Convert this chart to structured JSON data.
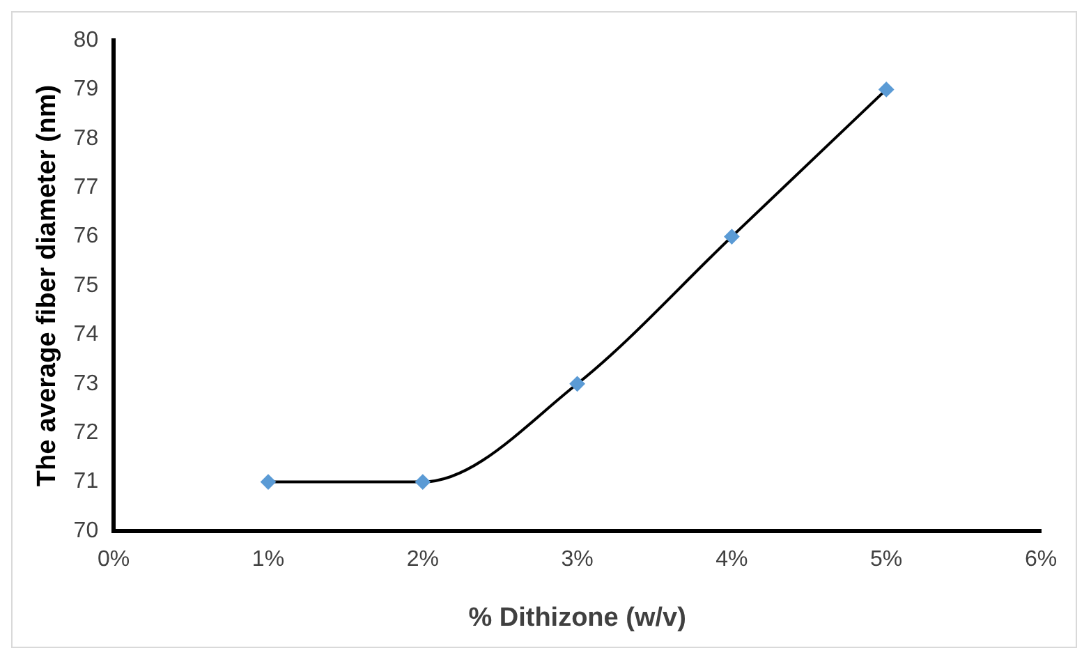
{
  "chart_data": {
    "type": "line",
    "xlabel": "% Dithizone (w/v)",
    "ylabel": "The average fiber diameter (nm)",
    "series": [
      {
        "color": "#000000",
        "x": [
          1,
          2,
          3,
          4,
          5
        ],
        "values": [
          71,
          71,
          73,
          76,
          79
        ],
        "marker": "none"
      },
      {
        "type": "scatter",
        "color": "#5b9bd5",
        "x": [
          1,
          2,
          3,
          4,
          5
        ],
        "values": [
          71,
          71,
          73,
          76,
          79
        ],
        "marker": "diamond"
      }
    ],
    "xlim": [
      0,
      6
    ],
    "xticks": [
      {
        "value": 0,
        "label": "0%"
      },
      {
        "value": 1,
        "label": "1%"
      },
      {
        "value": 2,
        "label": "2%"
      },
      {
        "value": 3,
        "label": "3%"
      },
      {
        "value": 4,
        "label": "4%"
      },
      {
        "value": 5,
        "label": "5%"
      },
      {
        "value": 6,
        "label": "6%"
      }
    ],
    "ylim": [
      70,
      80
    ],
    "yticks": [
      70,
      71,
      72,
      73,
      74,
      75,
      76,
      77,
      78,
      79,
      80
    ],
    "grid": false,
    "legend": false
  }
}
